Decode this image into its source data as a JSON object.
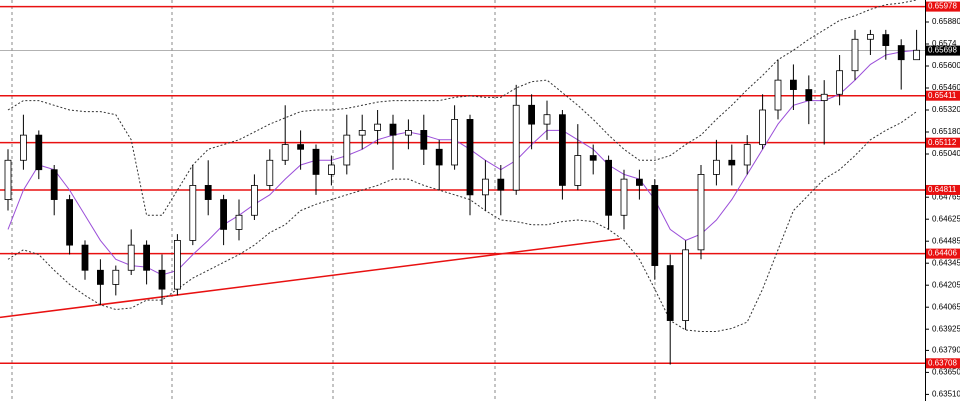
{
  "chart_data": {
    "type": "candlestick",
    "ylim": [
      0.63468,
      0.6602
    ],
    "yticks": [
      {
        "value": 0.6588,
        "label": "0.65880"
      },
      0.6574,
      {
        "value": 0.656,
        "label": "0.65600"
      },
      {
        "value": 0.6546,
        "label": "0.65460"
      },
      {
        "value": 0.6532,
        "label": "0.65320"
      },
      {
        "value": 0.6518,
        "label": "0.65180"
      },
      {
        "value": 0.6504,
        "label": "0.65040"
      },
      0.64765,
      0.64625,
      0.64485,
      0.64345,
      0.64205,
      0.64065,
      0.63925,
      {
        "value": 0.6379,
        "label": "0.63790"
      },
      {
        "value": 0.6365,
        "label": "0.63650"
      },
      {
        "value": 0.6351,
        "label": "0.63510"
      }
    ],
    "grid": false,
    "up_color": "#ffffff",
    "down_color": "#000000",
    "levels": [
      0.65978,
      0.65411,
      0.65112,
      0.64811,
      0.64406,
      0.63708
    ],
    "level_color": "#e81010",
    "current_price": 0.65698,
    "trendline": {
      "start": 0.64,
      "end": 0.645,
      "color": "#e81010"
    },
    "open": [
      0.6475,
      0.65,
      0.6516,
      0.6494,
      0.6475,
      0.6446,
      0.643,
      0.6421,
      0.643,
      0.6446,
      0.643,
      0.6418,
      0.6449,
      0.6484,
      0.6475,
      0.6456,
      0.6465,
      0.6484,
      0.65,
      0.651,
      0.6507,
      0.6491,
      0.6497,
      0.6516,
      0.6519,
      0.6523,
      0.6516,
      0.6519,
      0.6507,
      0.6497,
      0.6526,
      0.6478,
      0.6488,
      0.6481,
      0.6535,
      0.6523,
      0.6529,
      0.6484,
      0.6503,
      0.65,
      0.6465,
      0.6488,
      0.6484,
      0.6433,
      0.6398,
      0.6443,
      0.6491,
      0.65,
      0.6497,
      0.651,
      0.6532,
      0.6551,
      0.6545,
      0.6538,
      0.6542,
      0.6557,
      0.6577,
      0.658,
      0.6573,
      0.6564
    ],
    "high": [
      0.6507,
      0.6529,
      0.6519,
      0.6497,
      0.6478,
      0.6449,
      0.6437,
      0.6433,
      0.6456,
      0.6449,
      0.644,
      0.6453,
      0.6497,
      0.65,
      0.6478,
      0.6475,
      0.6491,
      0.6507,
      0.6535,
      0.6519,
      0.651,
      0.6503,
      0.6529,
      0.6529,
      0.6532,
      0.6529,
      0.6526,
      0.6529,
      0.6513,
      0.6535,
      0.6529,
      0.65,
      0.6497,
      0.6548,
      0.6542,
      0.6538,
      0.6532,
      0.6523,
      0.651,
      0.6503,
      0.6494,
      0.6494,
      0.6488,
      0.644,
      0.6449,
      0.6497,
      0.6513,
      0.651,
      0.6516,
      0.6542,
      0.6564,
      0.6561,
      0.6554,
      0.6551,
      0.6567,
      0.6583,
      0.6583,
      0.6583,
      0.6577,
      0.6583
    ],
    "low": [
      0.6468,
      0.6494,
      0.6488,
      0.6465,
      0.644,
      0.6424,
      0.6408,
      0.6414,
      0.6427,
      0.6421,
      0.6408,
      0.6414,
      0.6446,
      0.6465,
      0.6446,
      0.6449,
      0.6462,
      0.6481,
      0.6497,
      0.6494,
      0.6478,
      0.6484,
      0.6491,
      0.6507,
      0.651,
      0.6494,
      0.6507,
      0.6497,
      0.6481,
      0.6494,
      0.6465,
      0.6468,
      0.6465,
      0.6478,
      0.6507,
      0.6513,
      0.6475,
      0.6481,
      0.6491,
      0.6456,
      0.6456,
      0.6475,
      0.6424,
      0.637,
      0.6392,
      0.6437,
      0.6484,
      0.6484,
      0.6491,
      0.6507,
      0.6526,
      0.6532,
      0.6523,
      0.651,
      0.6535,
      0.6551,
      0.6567,
      0.6564,
      0.6545,
      0.6564
    ],
    "close": [
      0.65,
      0.6516,
      0.6494,
      0.6475,
      0.6446,
      0.643,
      0.6421,
      0.643,
      0.6446,
      0.643,
      0.6418,
      0.6449,
      0.6484,
      0.6475,
      0.6456,
      0.6465,
      0.6484,
      0.65,
      0.651,
      0.6507,
      0.6491,
      0.6497,
      0.6516,
      0.6519,
      0.6523,
      0.6516,
      0.6519,
      0.6507,
      0.6497,
      0.6526,
      0.6478,
      0.6488,
      0.6481,
      0.6535,
      0.6523,
      0.6529,
      0.6484,
      0.6503,
      0.65,
      0.6465,
      0.6488,
      0.6484,
      0.6433,
      0.6398,
      0.6443,
      0.6491,
      0.65,
      0.6497,
      0.651,
      0.6532,
      0.6551,
      0.6545,
      0.6538,
      0.6542,
      0.6557,
      0.6577,
      0.658,
      0.6573,
      0.6564,
      0.657
    ],
    "upper_band": [
      0.6532,
      0.6538,
      0.6538,
      0.6535,
      0.6532,
      0.6531,
      0.6531,
      0.6529,
      0.6513,
      0.6465,
      0.6465,
      0.6481,
      0.6497,
      0.6507,
      0.651,
      0.6513,
      0.6518,
      0.6523,
      0.6527,
      0.6531,
      0.6532,
      0.6532,
      0.6533,
      0.6535,
      0.6537,
      0.6538,
      0.6538,
      0.6538,
      0.6538,
      0.654,
      0.6541,
      0.654,
      0.654,
      0.6546,
      0.655,
      0.6551,
      0.6543,
      0.6535,
      0.6526,
      0.6516,
      0.6507,
      0.65,
      0.65,
      0.6503,
      0.651,
      0.6516,
      0.6526,
      0.6535,
      0.6545,
      0.6554,
      0.6564,
      0.657,
      0.6577,
      0.6583,
      0.6589,
      0.6592,
      0.6596,
      0.6599,
      0.66,
      0.6602
    ],
    "lower_band": [
      0.6437,
      0.6443,
      0.644,
      0.643,
      0.6421,
      0.6414,
      0.6408,
      0.6405,
      0.6406,
      0.6411,
      0.6411,
      0.6418,
      0.6425,
      0.643,
      0.6435,
      0.644,
      0.6446,
      0.6454,
      0.6459,
      0.6468,
      0.6472,
      0.6475,
      0.6478,
      0.6481,
      0.6484,
      0.6488,
      0.6488,
      0.6484,
      0.6481,
      0.6478,
      0.6475,
      0.6468,
      0.6462,
      0.6461,
      0.6459,
      0.6459,
      0.6461,
      0.6462,
      0.6461,
      0.6456,
      0.6449,
      0.6437,
      0.6418,
      0.6398,
      0.6392,
      0.6391,
      0.6391,
      0.6393,
      0.6397,
      0.6418,
      0.6443,
      0.6468,
      0.6478,
      0.6488,
      0.6494,
      0.6503,
      0.6513,
      0.6519,
      0.6524,
      0.6531
    ],
    "ma": [
      0.6456,
      0.6481,
      0.6497,
      0.6494,
      0.6481,
      0.6465,
      0.6449,
      0.6437,
      0.6433,
      0.6432,
      0.6427,
      0.643,
      0.644,
      0.6449,
      0.6459,
      0.6465,
      0.6472,
      0.6478,
      0.6488,
      0.6497,
      0.65,
      0.65,
      0.6503,
      0.6507,
      0.6513,
      0.6516,
      0.6518,
      0.6516,
      0.6513,
      0.6513,
      0.6507,
      0.65,
      0.6494,
      0.65,
      0.651,
      0.6519,
      0.6519,
      0.6513,
      0.6507,
      0.6497,
      0.6491,
      0.6488,
      0.6475,
      0.6456,
      0.6449,
      0.6453,
      0.6462,
      0.6475,
      0.6491,
      0.6507,
      0.6523,
      0.6535,
      0.6538,
      0.6538,
      0.6542,
      0.6551,
      0.6561,
      0.6567,
      0.6569,
      0.657
    ],
    "band_color": "#333333",
    "ma_color": "#9b4fd9"
  }
}
